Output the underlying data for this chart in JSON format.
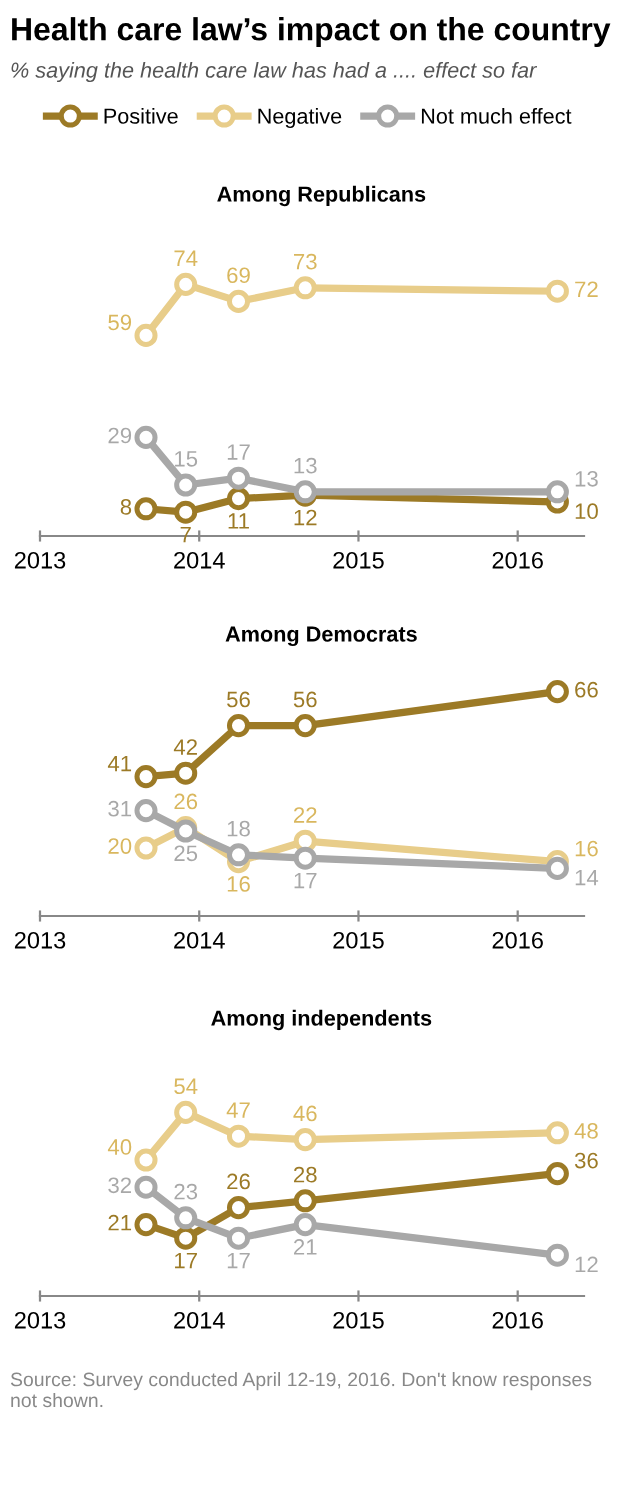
{
  "chart_data": [
    {
      "type": "line",
      "title": "Health care law’s impact on the country",
      "subtitle": "% saying the health care law has had a .... effect so far",
      "annotations": [
        "Among Republicans"
      ],
      "legend": "top",
      "marker": "circle",
      "data_labels": true,
      "x": [
        "2013-09",
        "2013-12",
        "2014-04",
        "2014-09",
        "2016-04"
      ],
      "xlim": [
        "2013-01",
        "2016-06"
      ],
      "xticks": [
        "2013",
        "2014",
        "2015",
        "2016"
      ],
      "series": [
        {
          "name": "Positive",
          "color": "#9c7a26",
          "values": [
            8,
            7,
            11,
            12,
            10
          ]
        },
        {
          "name": "Negative",
          "color": "#e8cd8a",
          "values": [
            59,
            74,
            69,
            73,
            72
          ]
        },
        {
          "name": "Not much effect",
          "color": "#a8a8a8",
          "values": [
            29,
            15,
            17,
            13,
            13
          ]
        }
      ]
    },
    {
      "type": "line",
      "annotations": [
        "Among Democrats"
      ],
      "marker": "circle",
      "data_labels": true,
      "x": [
        "2013-09",
        "2013-12",
        "2014-04",
        "2014-09",
        "2016-04"
      ],
      "xlim": [
        "2013-01",
        "2016-06"
      ],
      "xticks": [
        "2013",
        "2014",
        "2015",
        "2016"
      ],
      "series": [
        {
          "color": "#9c7a26",
          "values": [
            41,
            42,
            56,
            56,
            66
          ]
        },
        {
          "color": "#e8cd8a",
          "values": [
            20,
            26,
            16,
            22,
            16
          ]
        },
        {
          "color": "#a8a8a8",
          "values": [
            31,
            25,
            18,
            17,
            14
          ]
        }
      ]
    },
    {
      "type": "line",
      "annotations": [
        "Among independents",
        "Source: Survey conducted April 12-19, 2016. Don't know responses not shown."
      ],
      "marker": "circle",
      "data_labels": true,
      "x": [
        "2013-09",
        "2013-12",
        "2014-04",
        "2014-09",
        "2016-04"
      ],
      "xlim": [
        "2013-01",
        "2016-06"
      ],
      "xticks": [
        "2013",
        "2014",
        "2015",
        "2016"
      ],
      "series": [
        {
          "color": "#9c7a26",
          "values": [
            21,
            17,
            26,
            28,
            36
          ]
        },
        {
          "color": "#e8cd8a",
          "values": [
            40,
            54,
            47,
            46,
            48
          ]
        },
        {
          "color": "#a8a8a8",
          "values": [
            32,
            23,
            17,
            21,
            12
          ]
        }
      ]
    }
  ]
}
